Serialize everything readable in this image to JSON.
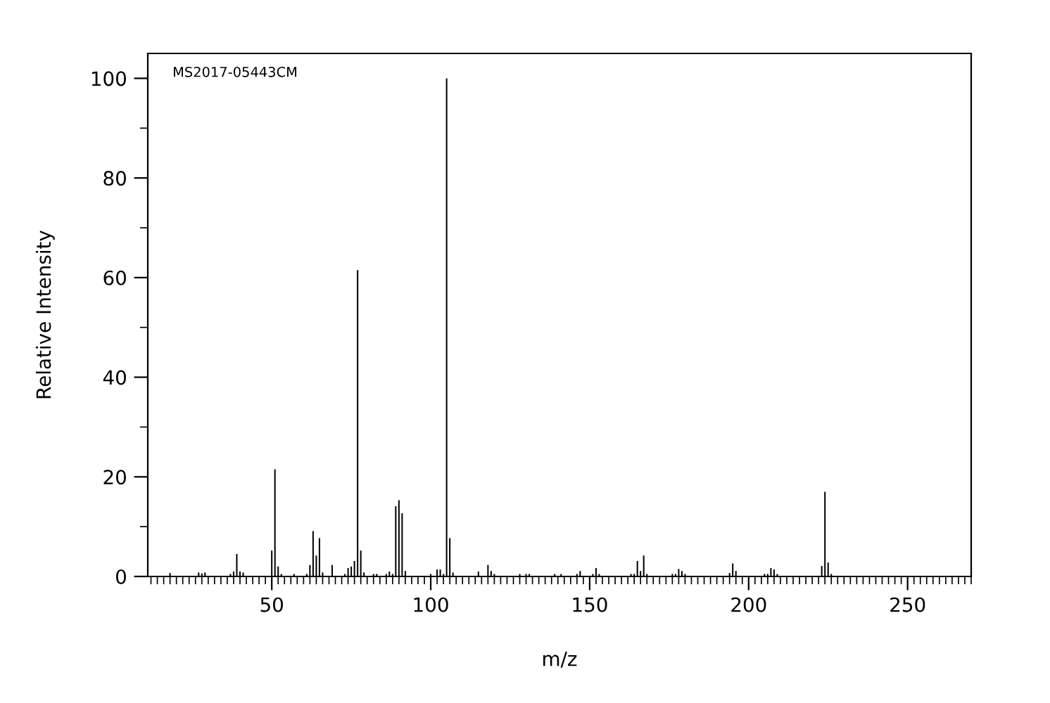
{
  "chart_data": {
    "type": "bar",
    "xlabel": "m/z",
    "ylabel": "Relative Intensity",
    "annotations": [
      "MS2017-05443CM"
    ],
    "x": [
      18,
      27,
      28,
      29,
      37,
      38,
      39,
      40,
      41,
      50,
      51,
      52,
      53,
      57,
      61,
      62,
      63,
      64,
      65,
      66,
      69,
      73,
      74,
      75,
      76,
      77,
      78,
      79,
      82,
      83,
      86,
      87,
      88,
      89,
      90,
      91,
      92,
      100,
      102,
      103,
      104,
      105,
      106,
      107,
      115,
      118,
      119,
      120,
      128,
      130,
      131,
      139,
      141,
      146,
      147,
      151,
      152,
      153,
      163,
      164,
      165,
      166,
      167,
      168,
      176,
      177,
      178,
      179,
      180,
      194,
      195,
      196,
      205,
      206,
      207,
      208,
      209,
      223,
      224,
      225,
      226
    ],
    "values": [
      0.7,
      0.8,
      0.6,
      0.8,
      0.5,
      1,
      4.5,
      1,
      0.8,
      5.2,
      21.5,
      2,
      0.5,
      0.5,
      0.5,
      2.3,
      9.1,
      4.2,
      7.7,
      0.8,
      2.3,
      0.5,
      1.7,
      2,
      3.1,
      61.5,
      5.2,
      0.8,
      0.5,
      0.5,
      0.5,
      1,
      0.5,
      14.1,
      15.3,
      12.7,
      1.1,
      0.5,
      1.4,
      1.4,
      0.5,
      100,
      7.7,
      0.8,
      1,
      2.3,
      1.1,
      0.5,
      0.5,
      0.5,
      0.5,
      0.5,
      0.5,
      0.5,
      1.1,
      0.5,
      1.7,
      0.5,
      0.5,
      0.5,
      3.1,
      1.1,
      4.2,
      0.5,
      0.5,
      0.5,
      1.5,
      1.1,
      0.5,
      0.7,
      2.6,
      1.1,
      0.5,
      0.5,
      1.7,
      1.4,
      0.5,
      2.1,
      17,
      2.8,
      0.5
    ],
    "color": "#000000",
    "xlim": [
      11,
      270
    ],
    "xticks": [
      {
        "value": 12,
        "label": null
      },
      {
        "value": 14,
        "label": null
      },
      {
        "value": 16,
        "label": null
      },
      {
        "value": 18,
        "label": null
      },
      {
        "value": 20,
        "label": null
      },
      {
        "value": 22,
        "label": null
      },
      {
        "value": 24,
        "label": null
      },
      {
        "value": 26,
        "label": null
      },
      {
        "value": 28,
        "label": null
      },
      {
        "value": 30,
        "label": null
      },
      {
        "value": 32,
        "label": null
      },
      {
        "value": 34,
        "label": null
      },
      {
        "value": 36,
        "label": null
      },
      {
        "value": 38,
        "label": null
      },
      {
        "value": 40,
        "label": null
      },
      {
        "value": 42,
        "label": null
      },
      {
        "value": 44,
        "label": null
      },
      {
        "value": 46,
        "label": null
      },
      {
        "value": 48,
        "label": null
      },
      50,
      {
        "value": 52,
        "label": null
      },
      {
        "value": 54,
        "label": null
      },
      {
        "value": 56,
        "label": null
      },
      {
        "value": 58,
        "label": null
      },
      {
        "value": 60,
        "label": null
      },
      {
        "value": 62,
        "label": null
      },
      {
        "value": 64,
        "label": null
      },
      {
        "value": 66,
        "label": null
      },
      {
        "value": 68,
        "label": null
      },
      {
        "value": 70,
        "label": null
      },
      {
        "value": 72,
        "label": null
      },
      {
        "value": 74,
        "label": null
      },
      {
        "value": 76,
        "label": null
      },
      {
        "value": 78,
        "label": null
      },
      {
        "value": 80,
        "label": null
      },
      {
        "value": 82,
        "label": null
      },
      {
        "value": 84,
        "label": null
      },
      {
        "value": 86,
        "label": null
      },
      {
        "value": 88,
        "label": null
      },
      {
        "value": 90,
        "label": null
      },
      {
        "value": 92,
        "label": null
      },
      {
        "value": 94,
        "label": null
      },
      {
        "value": 96,
        "label": null
      },
      {
        "value": 98,
        "label": null
      },
      100,
      {
        "value": 102,
        "label": null
      },
      {
        "value": 104,
        "label": null
      },
      {
        "value": 106,
        "label": null
      },
      {
        "value": 108,
        "label": null
      },
      {
        "value": 110,
        "label": null
      },
      {
        "value": 112,
        "label": null
      },
      {
        "value": 114,
        "label": null
      },
      {
        "value": 116,
        "label": null
      },
      {
        "value": 118,
        "label": null
      },
      {
        "value": 120,
        "label": null
      },
      {
        "value": 122,
        "label": null
      },
      {
        "value": 124,
        "label": null
      },
      {
        "value": 126,
        "label": null
      },
      {
        "value": 128,
        "label": null
      },
      {
        "value": 130,
        "label": null
      },
      {
        "value": 132,
        "label": null
      },
      {
        "value": 134,
        "label": null
      },
      {
        "value": 136,
        "label": null
      },
      {
        "value": 138,
        "label": null
      },
      {
        "value": 140,
        "label": null
      },
      {
        "value": 142,
        "label": null
      },
      {
        "value": 144,
        "label": null
      },
      {
        "value": 146,
        "label": null
      },
      {
        "value": 148,
        "label": null
      },
      150,
      {
        "value": 152,
        "label": null
      },
      {
        "value": 154,
        "label": null
      },
      {
        "value": 156,
        "label": null
      },
      {
        "value": 158,
        "label": null
      },
      {
        "value": 160,
        "label": null
      },
      {
        "value": 162,
        "label": null
      },
      {
        "value": 164,
        "label": null
      },
      {
        "value": 166,
        "label": null
      },
      {
        "value": 168,
        "label": null
      },
      {
        "value": 170,
        "label": null
      },
      {
        "value": 172,
        "label": null
      },
      {
        "value": 174,
        "label": null
      },
      {
        "value": 176,
        "label": null
      },
      {
        "value": 178,
        "label": null
      },
      {
        "value": 180,
        "label": null
      },
      {
        "value": 182,
        "label": null
      },
      {
        "value": 184,
        "label": null
      },
      {
        "value": 186,
        "label": null
      },
      {
        "value": 188,
        "label": null
      },
      {
        "value": 190,
        "label": null
      },
      {
        "value": 192,
        "label": null
      },
      {
        "value": 194,
        "label": null
      },
      {
        "value": 196,
        "label": null
      },
      {
        "value": 198,
        "label": null
      },
      200,
      {
        "value": 202,
        "label": null
      },
      {
        "value": 204,
        "label": null
      },
      {
        "value": 206,
        "label": null
      },
      {
        "value": 208,
        "label": null
      },
      {
        "value": 210,
        "label": null
      },
      {
        "value": 212,
        "label": null
      },
      {
        "value": 214,
        "label": null
      },
      {
        "value": 216,
        "label": null
      },
      {
        "value": 218,
        "label": null
      },
      {
        "value": 220,
        "label": null
      },
      {
        "value": 222,
        "label": null
      },
      {
        "value": 224,
        "label": null
      },
      {
        "value": 226,
        "label": null
      },
      {
        "value": 228,
        "label": null
      },
      {
        "value": 230,
        "label": null
      },
      {
        "value": 232,
        "label": null
      },
      {
        "value": 234,
        "label": null
      },
      {
        "value": 236,
        "label": null
      },
      {
        "value": 238,
        "label": null
      },
      {
        "value": 240,
        "label": null
      },
      {
        "value": 242,
        "label": null
      },
      {
        "value": 244,
        "label": null
      },
      {
        "value": 246,
        "label": null
      },
      {
        "value": 248,
        "label": null
      },
      250,
      {
        "value": 252,
        "label": null
      },
      {
        "value": 254,
        "label": null
      },
      {
        "value": 256,
        "label": null
      },
      {
        "value": 258,
        "label": null
      },
      {
        "value": 260,
        "label": null
      },
      {
        "value": 262,
        "label": null
      },
      {
        "value": 264,
        "label": null
      },
      {
        "value": 266,
        "label": null
      },
      {
        "value": 268,
        "label": null
      },
      {
        "value": 270,
        "label": null
      }
    ],
    "ylim": [
      0,
      105
    ],
    "yticks": [
      0,
      {
        "value": 10,
        "label": null
      },
      20,
      {
        "value": 30,
        "label": null
      },
      40,
      {
        "value": 50,
        "label": null
      },
      60,
      {
        "value": 70,
        "label": null
      },
      80,
      {
        "value": 90,
        "label": null
      },
      100
    ],
    "grid": false,
    "legend": false
  }
}
